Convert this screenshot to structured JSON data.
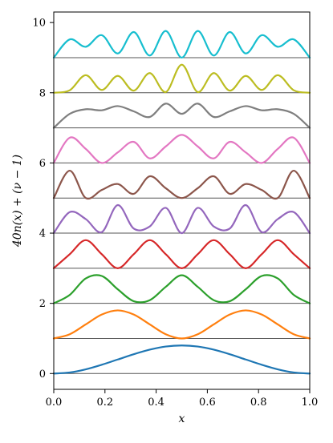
{
  "chart_data": {
    "type": "line",
    "title": "",
    "xlabel": "x",
    "ylabel": "40n(x) + (ν − 1)",
    "xlim": [
      0,
      1
    ],
    "ylim": [
      -0.45,
      10.3
    ],
    "xticks": [
      0.0,
      0.2,
      0.4,
      0.6,
      0.8,
      1.0
    ],
    "xtick_labels": [
      "0.0",
      "0.2",
      "0.4",
      "0.6",
      "0.8",
      "1.0"
    ],
    "yticks": [
      0,
      2,
      4,
      6,
      8,
      10
    ],
    "ytick_labels": [
      "0",
      "2",
      "4",
      "6",
      "8",
      "10"
    ],
    "grid": false,
    "baseline_color": "#555555",
    "x": [
      0.0,
      0.0625,
      0.125,
      0.1875,
      0.25,
      0.3125,
      0.375,
      0.4375,
      0.5,
      0.5625,
      0.625,
      0.6875,
      0.75,
      0.8125,
      0.875,
      0.9375,
      1.0
    ],
    "series": [
      {
        "color": "#1f77b4",
        "offset": 0,
        "values": [
          0.0,
          0.03,
          0.12,
          0.25,
          0.4,
          0.55,
          0.68,
          0.77,
          0.8,
          0.77,
          0.68,
          0.55,
          0.4,
          0.25,
          0.12,
          0.03,
          0.0
        ]
      },
      {
        "color": "#ff7f0e",
        "offset": 1,
        "values": [
          1.0,
          1.12,
          1.4,
          1.68,
          1.8,
          1.68,
          1.4,
          1.12,
          1.0,
          1.12,
          1.4,
          1.68,
          1.8,
          1.68,
          1.4,
          1.12,
          1.0
        ]
      },
      {
        "color": "#2ca02c",
        "offset": 2,
        "values": [
          2.0,
          2.24,
          2.71,
          2.78,
          2.4,
          2.06,
          2.09,
          2.47,
          2.8,
          2.47,
          2.09,
          2.06,
          2.4,
          2.78,
          2.71,
          2.24,
          2.0
        ]
      },
      {
        "color": "#d62728",
        "offset": 3,
        "values": [
          3.0,
          3.4,
          3.8,
          3.4,
          3.0,
          3.4,
          3.8,
          3.4,
          3.0,
          3.4,
          3.8,
          3.4,
          3.0,
          3.4,
          3.8,
          3.4,
          3.0
        ]
      },
      {
        "color": "#9467bd",
        "offset": 4,
        "values": [
          4.0,
          4.6,
          4.4,
          4.03,
          4.8,
          4.13,
          4.19,
          4.72,
          4.0,
          4.72,
          4.19,
          4.13,
          4.8,
          4.03,
          4.4,
          4.6,
          4.0
        ]
      },
      {
        "color": "#8c564b",
        "offset": 5,
        "values": [
          5.0,
          5.78,
          5.0,
          5.23,
          5.4,
          5.12,
          5.62,
          5.28,
          5.0,
          5.28,
          5.62,
          5.12,
          5.4,
          5.23,
          5.0,
          5.78,
          5.0
        ]
      },
      {
        "color": "#e377c2",
        "offset": 6,
        "values": [
          6.0,
          6.72,
          6.4,
          6.0,
          6.3,
          6.6,
          6.13,
          6.47,
          6.8,
          6.47,
          6.13,
          6.6,
          6.3,
          6.0,
          6.4,
          6.72,
          6.0
        ]
      },
      {
        "color": "#7f7f7f",
        "offset": 7,
        "values": [
          7.0,
          7.4,
          7.53,
          7.5,
          7.62,
          7.47,
          7.31,
          7.69,
          7.4,
          7.69,
          7.31,
          7.47,
          7.62,
          7.5,
          7.53,
          7.4,
          7.0
        ]
      },
      {
        "color": "#bcbd22",
        "offset": 8,
        "values": [
          8.0,
          8.07,
          8.5,
          8.08,
          8.48,
          8.06,
          8.56,
          8.02,
          8.8,
          8.02,
          8.56,
          8.06,
          8.48,
          8.08,
          8.5,
          8.07,
          8.0
        ]
      },
      {
        "color": "#17becf",
        "offset": 9,
        "values": [
          9.0,
          9.52,
          9.31,
          9.64,
          9.12,
          9.73,
          9.06,
          9.76,
          9.0,
          9.76,
          9.06,
          9.73,
          9.12,
          9.64,
          9.31,
          9.52,
          9.0
        ]
      }
    ]
  }
}
